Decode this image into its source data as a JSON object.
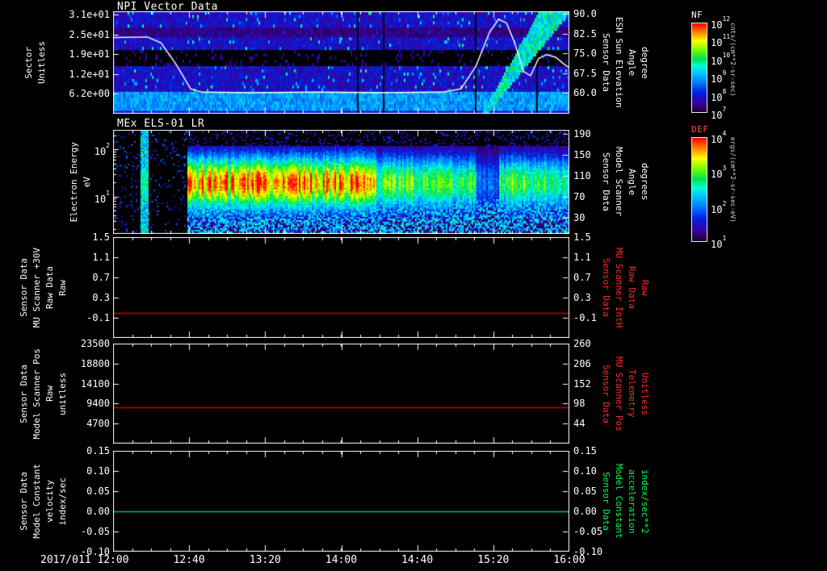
{
  "colors": {
    "background": "#000000",
    "axis": "#ffffff",
    "red_label": "#ff2a2a",
    "green_label": "#00ff55",
    "colormap_stops": [
      [
        0.02,
        "#20003c"
      ],
      [
        0.1,
        "#3a00a0"
      ],
      [
        0.22,
        "#0020e0"
      ],
      [
        0.34,
        "#0080ff"
      ],
      [
        0.44,
        "#00c8ff"
      ],
      [
        0.52,
        "#00ffd0"
      ],
      [
        0.6,
        "#00e050"
      ],
      [
        0.7,
        "#70ff00"
      ],
      [
        0.8,
        "#ffff00"
      ],
      [
        0.9,
        "#ff8000"
      ],
      [
        1.0,
        "#ff0000"
      ]
    ]
  },
  "xaxis": {
    "start_label": "2017/011 12:00",
    "lim_hours": [
      12,
      16
    ],
    "tick_labels": [
      {
        "hour": 12.6667,
        "label": "12:40"
      },
      {
        "hour": 13.3333,
        "label": "13:20"
      },
      {
        "hour": 14.0,
        "label": "14:00"
      },
      {
        "hour": 14.6667,
        "label": "14:40"
      },
      {
        "hour": 15.3333,
        "label": "15:20"
      },
      {
        "hour": 16.0,
        "label": "16:00"
      }
    ]
  },
  "colorbars": [
    {
      "title": "NF",
      "title_color": "#ffffff",
      "units": "cnts/(cm**2-sr-sec)",
      "tick_exponents": [
        12,
        11,
        10,
        9,
        8,
        7
      ]
    },
    {
      "title": "DEF",
      "title_color": "#ff5533",
      "units": "ergs/(cm**2-sr-sec-eV)",
      "tick_exponents": [
        4,
        3,
        2,
        1
      ]
    }
  ],
  "chart_data": [
    {
      "type": "heatmap",
      "title": "NPI Vector Data",
      "ylabel_lines": [
        "Sector",
        "Unitless"
      ],
      "yaxis": {
        "lim": [
          0,
          32
        ],
        "ticks": [
          {
            "v": 31.0,
            "label": "3.1e+01"
          },
          {
            "v": 24.8,
            "label": "2.5e+01"
          },
          {
            "v": 18.6,
            "label": "1.9e+01"
          },
          {
            "v": 12.4,
            "label": "1.2e+01"
          },
          {
            "v": 6.2,
            "label": "6.2e+00"
          }
        ]
      },
      "right_axis": {
        "color": "#ffffff",
        "label_lines": [
          "Sensor Data",
          "ESH Sun Elevation",
          "Angle",
          "degree"
        ],
        "lim": [
          52,
          91
        ],
        "ticks": [
          {
            "v": 90.0,
            "label": "90.0"
          },
          {
            "v": 82.5,
            "label": "82.5"
          },
          {
            "v": 75.0,
            "label": "75.0"
          },
          {
            "v": 67.5,
            "label": "67.5"
          },
          {
            "v": 60.0,
            "label": "60.0"
          }
        ]
      },
      "overlay_curve": {
        "name": "esh-sun-elevation-angle",
        "color": "#ffffff",
        "units": "degree",
        "points_hour_value": [
          [
            12.0,
            81
          ],
          [
            12.3,
            81.2
          ],
          [
            12.42,
            79
          ],
          [
            12.55,
            71
          ],
          [
            12.68,
            61.5
          ],
          [
            12.78,
            60.2
          ],
          [
            13.2,
            60
          ],
          [
            13.8,
            60.2
          ],
          [
            14.4,
            60
          ],
          [
            14.9,
            60.3
          ],
          [
            15.05,
            61.5
          ],
          [
            15.18,
            70
          ],
          [
            15.3,
            83
          ],
          [
            15.38,
            88
          ],
          [
            15.45,
            86.5
          ],
          [
            15.52,
            79
          ],
          [
            15.6,
            68
          ],
          [
            15.66,
            66.5
          ],
          [
            15.73,
            73
          ],
          [
            15.8,
            74.5
          ],
          [
            15.88,
            73.5
          ],
          [
            15.95,
            71
          ],
          [
            16.0,
            69.5
          ]
        ]
      },
      "texture": {
        "seed": 101,
        "dark_band_sectors": [
          15,
          19
        ],
        "dim_band_sectors": [
          24,
          26
        ],
        "bright_band_sectors": [
          0,
          6
        ],
        "streak": {
          "x_bottom_hour": 15.26,
          "x_top_hour": 15.88
        }
      }
    },
    {
      "type": "heatmap",
      "title": "MEx ELS-01 LR",
      "ylabel_lines": [
        "Electron Energy",
        "eV"
      ],
      "yaxis_log": {
        "lim_log10": [
          0.2,
          2.42
        ],
        "ticks": [
          {
            "log10": 2,
            "exp": 2
          },
          {
            "log10": 1,
            "exp": 1
          }
        ]
      },
      "right_axis": {
        "color": "#ffffff",
        "label_lines": [
          "Sensor Data",
          "Model Scanner",
          "Angle",
          "degrees"
        ],
        "lim": [
          -1,
          198
        ],
        "ticks": [
          {
            "v": 190,
            "label": "190"
          },
          {
            "v": 150,
            "label": "150"
          },
          {
            "v": 110,
            "label": "110"
          },
          {
            "v": 70,
            "label": "70"
          },
          {
            "v": 30,
            "label": "30"
          }
        ]
      },
      "texture": {
        "seed": 202,
        "hot_start_hour": 12.64,
        "hot_end_hour": 14.3,
        "left_strip_hours": [
          12.23,
          12.31
        ],
        "gap_hours": [
          15.18,
          15.38
        ]
      }
    },
    {
      "type": "line",
      "ylabel_lines": [
        "Sensor Data",
        "MU Scanner +30V",
        "Raw Data",
        "Raw"
      ],
      "yaxis": {
        "lim": [
          -0.5,
          1.5
        ],
        "ticks": [
          {
            "v": 1.5,
            "label": "1.5"
          },
          {
            "v": 1.1,
            "label": "1.1"
          },
          {
            "v": 0.7,
            "label": "0.7"
          },
          {
            "v": 0.3,
            "label": "0.3"
          },
          {
            "v": -0.1,
            "label": "-0.1"
          }
        ]
      },
      "right_axis": {
        "color": "#ff2a2a",
        "label_lines": [
          "Sensor Data",
          "MU Scanner IntH",
          "Raw Data",
          "Raw"
        ],
        "lim": [
          -0.5,
          1.5
        ],
        "ticks": [
          {
            "v": 1.5,
            "label": "1.5"
          },
          {
            "v": 1.1,
            "label": "1.1"
          },
          {
            "v": 0.7,
            "label": "0.7"
          },
          {
            "v": 0.3,
            "label": "0.3"
          },
          {
            "v": -0.1,
            "label": "-0.1"
          }
        ]
      },
      "series": [
        {
          "name": "mu-scanner-30v-raw",
          "color": "#cc0000",
          "constant_value": 0.0,
          "x_range_hours": [
            12,
            16
          ]
        }
      ]
    },
    {
      "type": "line",
      "ylabel_lines": [
        "Sensor Data",
        "Model Scanner Pos",
        "Raw",
        "unitless"
      ],
      "yaxis": {
        "lim": [
          0,
          23500
        ],
        "ticks": [
          {
            "v": 23500,
            "label": "23500"
          },
          {
            "v": 18800,
            "label": "18800"
          },
          {
            "v": 14100,
            "label": "14100"
          },
          {
            "v": 9400,
            "label": "9400"
          },
          {
            "v": 4700,
            "label": "4700"
          }
        ]
      },
      "right_axis": {
        "color": "#ff2a2a",
        "label_lines": [
          "Sensor Data",
          "MU Scanner Pos",
          "Telemetry",
          "Unitless"
        ],
        "lim": [
          -10,
          260
        ],
        "ticks": [
          {
            "v": 260,
            "label": "260"
          },
          {
            "v": 206,
            "label": "206"
          },
          {
            "v": 152,
            "label": "152"
          },
          {
            "v": 98,
            "label": "98"
          },
          {
            "v": 44,
            "label": "44"
          }
        ]
      },
      "series": [
        {
          "name": "model-scanner-pos-raw",
          "color": "#cc0000",
          "constant_value": 8600,
          "x_range_hours": [
            12,
            16
          ]
        }
      ]
    },
    {
      "type": "line",
      "ylabel_lines": [
        "Sensor Data",
        "Model Constant",
        "velocity",
        "index/sec"
      ],
      "yaxis": {
        "lim": [
          -0.1,
          0.15
        ],
        "ticks": [
          {
            "v": 0.15,
            "label": "0.15"
          },
          {
            "v": 0.1,
            "label": "0.10"
          },
          {
            "v": 0.05,
            "label": "0.05"
          },
          {
            "v": 0.0,
            "label": "0.00"
          },
          {
            "v": -0.05,
            "label": "-0.05"
          },
          {
            "v": -0.1,
            "label": "-0.10"
          }
        ]
      },
      "right_axis": {
        "color": "#00ff55",
        "label_lines": [
          "Sensor Data",
          "Model Constant",
          "acceleration",
          "index/sec**2"
        ],
        "lim": [
          -0.1,
          0.15
        ],
        "ticks": [
          {
            "v": 0.15,
            "label": "0.15"
          },
          {
            "v": 0.1,
            "label": "0.10"
          },
          {
            "v": 0.05,
            "label": "0.05"
          },
          {
            "v": 0.0,
            "label": "0.00"
          },
          {
            "v": -0.05,
            "label": "-0.05"
          },
          {
            "v": -0.1,
            "label": "-0.10"
          }
        ]
      },
      "series": [
        {
          "name": "model-constant-velocity",
          "color": "#00cc55",
          "constant_value": 0.0,
          "x_range_hours": [
            12,
            16
          ]
        }
      ]
    }
  ]
}
